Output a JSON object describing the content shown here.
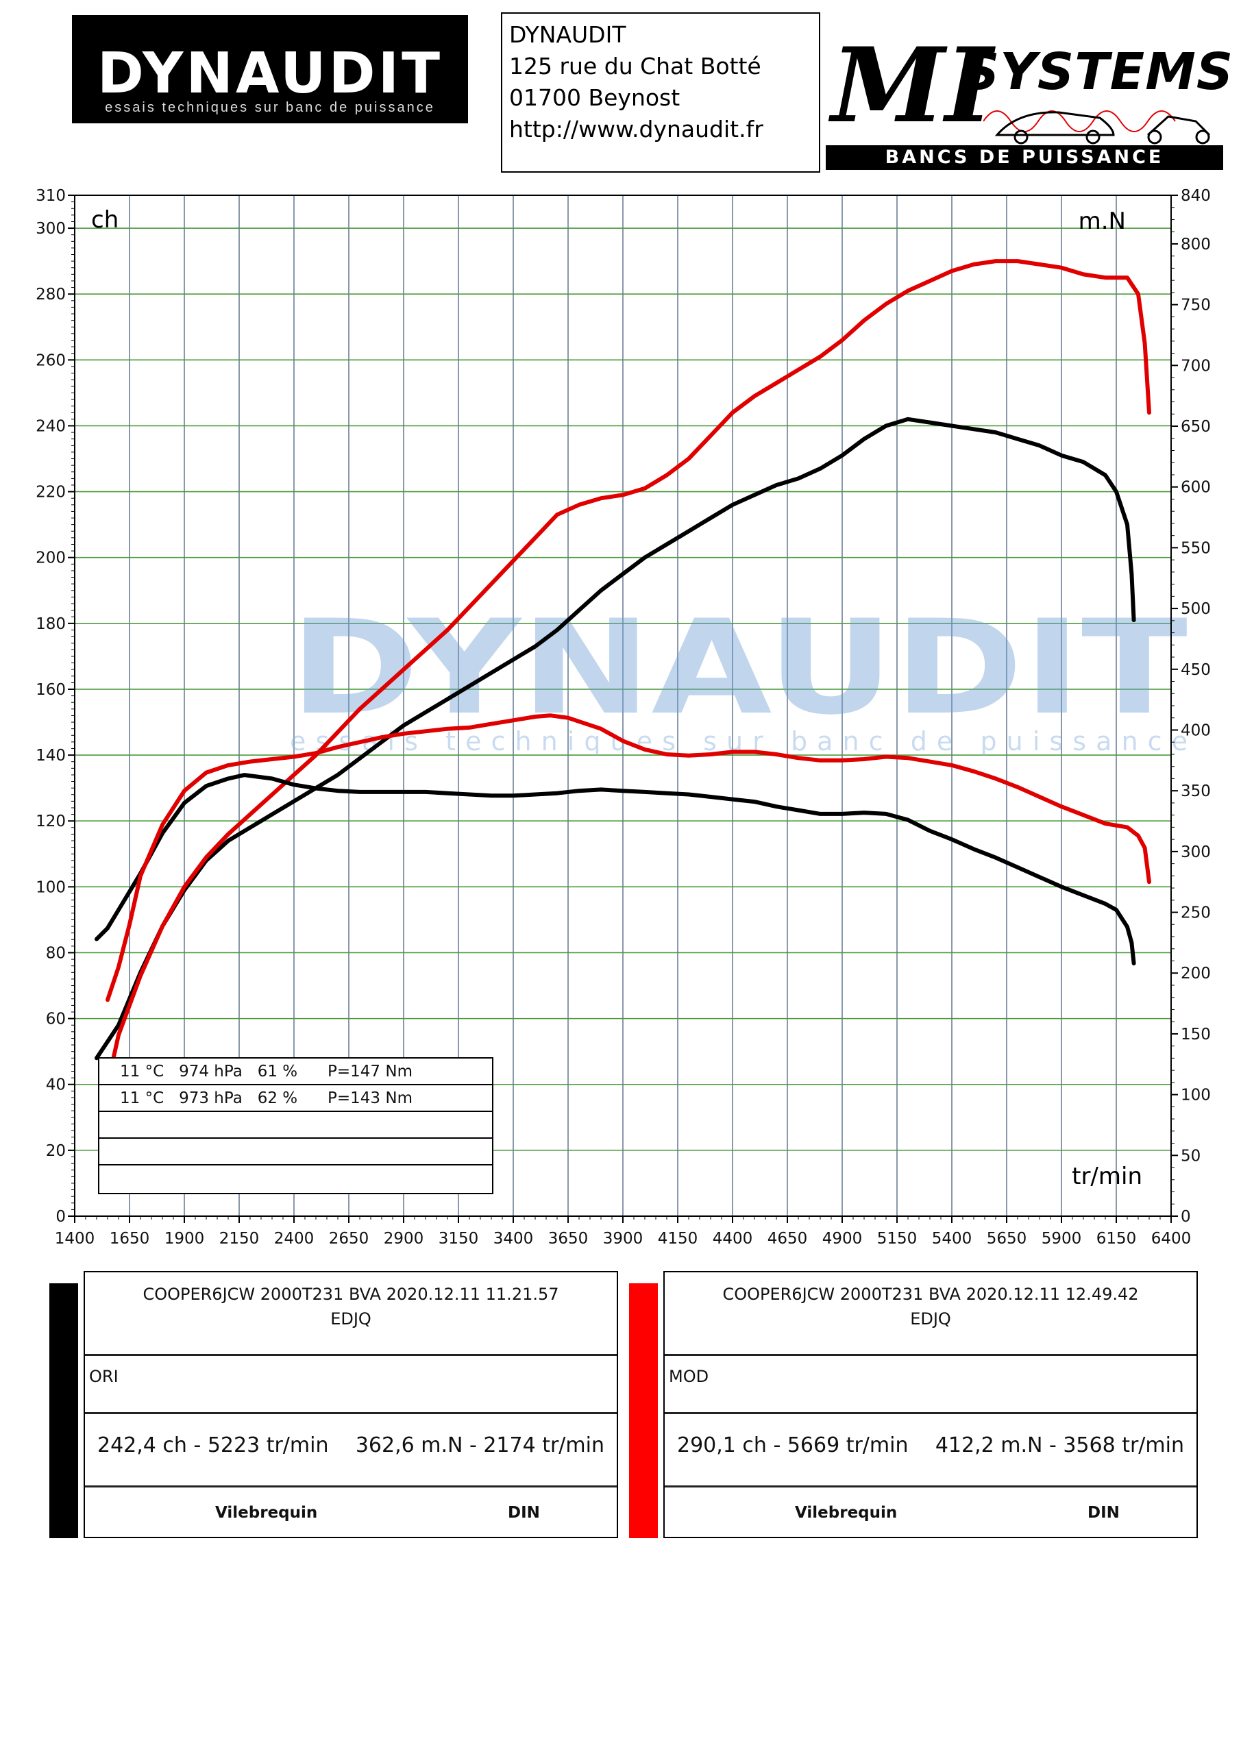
{
  "header": {
    "logo_left": {
      "word": "DYNAUDIT",
      "tagline": "essais techniques sur banc de puissance"
    },
    "address": [
      "DYNAUDIT",
      "125 rue du Chat Botté",
      "01700 Beynost",
      "http://www.dynaudit.fr"
    ],
    "logo_right": {
      "mi": "MI",
      "systems": "SYSTEMS",
      "subtitle": "BANCS DE PUISSANCE"
    }
  },
  "watermark": {
    "word": "DYNAUDIT",
    "tagline": "essais techniques sur banc de puissance"
  },
  "chart_data": {
    "type": "line",
    "xlabel": "tr/min",
    "ylabel_left": "ch",
    "ylabel_right": "m.N",
    "xlim": [
      1400,
      6400
    ],
    "ylim_left": [
      0,
      310
    ],
    "ylim_right": [
      0,
      840
    ],
    "x_ticks": [
      1400,
      1650,
      1900,
      2150,
      2400,
      2650,
      2900,
      3150,
      3400,
      3650,
      3900,
      4150,
      4400,
      4650,
      4900,
      5150,
      5400,
      5650,
      5900,
      6150,
      6400
    ],
    "y_left_ticks": [
      0,
      20,
      40,
      60,
      80,
      100,
      120,
      140,
      160,
      180,
      200,
      220,
      240,
      260,
      280,
      300,
      310
    ],
    "y_right_ticks": [
      0,
      50,
      100,
      150,
      200,
      250,
      300,
      350,
      400,
      450,
      500,
      550,
      600,
      650,
      700,
      750,
      800,
      840
    ],
    "grid": true,
    "series": [
      {
        "name": "ORI",
        "metric": "power",
        "axis": "left",
        "color": "#000000",
        "points": [
          [
            1500,
            48
          ],
          [
            1600,
            58
          ],
          [
            1700,
            74
          ],
          [
            1800,
            88
          ],
          [
            1900,
            99
          ],
          [
            2000,
            108
          ],
          [
            2100,
            114
          ],
          [
            2200,
            118
          ],
          [
            2300,
            122
          ],
          [
            2400,
            126
          ],
          [
            2500,
            130
          ],
          [
            2600,
            134
          ],
          [
            2700,
            139
          ],
          [
            2800,
            144
          ],
          [
            2900,
            149
          ],
          [
            3000,
            153
          ],
          [
            3100,
            157
          ],
          [
            3200,
            161
          ],
          [
            3300,
            165
          ],
          [
            3400,
            169
          ],
          [
            3500,
            173
          ],
          [
            3600,
            178
          ],
          [
            3700,
            184
          ],
          [
            3800,
            190
          ],
          [
            3900,
            195
          ],
          [
            4000,
            200
          ],
          [
            4100,
            204
          ],
          [
            4200,
            208
          ],
          [
            4300,
            212
          ],
          [
            4400,
            216
          ],
          [
            4500,
            219
          ],
          [
            4600,
            222
          ],
          [
            4700,
            224
          ],
          [
            4800,
            227
          ],
          [
            4900,
            231
          ],
          [
            5000,
            236
          ],
          [
            5100,
            240
          ],
          [
            5200,
            242
          ],
          [
            5300,
            241
          ],
          [
            5400,
            240
          ],
          [
            5500,
            239
          ],
          [
            5600,
            238
          ],
          [
            5700,
            236
          ],
          [
            5800,
            234
          ],
          [
            5900,
            231
          ],
          [
            6000,
            229
          ],
          [
            6100,
            225
          ],
          [
            6150,
            220
          ],
          [
            6200,
            210
          ],
          [
            6220,
            195
          ],
          [
            6230,
            181
          ]
        ]
      },
      {
        "name": "MOD",
        "metric": "power",
        "axis": "left",
        "color": "#e00000",
        "points": [
          [
            1550,
            40
          ],
          [
            1600,
            55
          ],
          [
            1700,
            73
          ],
          [
            1800,
            88
          ],
          [
            1900,
            100
          ],
          [
            2000,
            109
          ],
          [
            2100,
            116
          ],
          [
            2200,
            122
          ],
          [
            2300,
            128
          ],
          [
            2400,
            134
          ],
          [
            2500,
            140
          ],
          [
            2600,
            147
          ],
          [
            2700,
            154
          ],
          [
            2800,
            160
          ],
          [
            2900,
            166
          ],
          [
            3000,
            172
          ],
          [
            3100,
            178
          ],
          [
            3200,
            185
          ],
          [
            3300,
            192
          ],
          [
            3400,
            199
          ],
          [
            3500,
            206
          ],
          [
            3600,
            213
          ],
          [
            3700,
            216
          ],
          [
            3800,
            218
          ],
          [
            3900,
            219
          ],
          [
            4000,
            221
          ],
          [
            4100,
            225
          ],
          [
            4200,
            230
          ],
          [
            4300,
            237
          ],
          [
            4400,
            244
          ],
          [
            4500,
            249
          ],
          [
            4600,
            253
          ],
          [
            4700,
            257
          ],
          [
            4800,
            261
          ],
          [
            4900,
            266
          ],
          [
            5000,
            272
          ],
          [
            5100,
            277
          ],
          [
            5200,
            281
          ],
          [
            5300,
            284
          ],
          [
            5400,
            287
          ],
          [
            5500,
            289
          ],
          [
            5600,
            290
          ],
          [
            5700,
            290
          ],
          [
            5800,
            289
          ],
          [
            5900,
            288
          ],
          [
            6000,
            286
          ],
          [
            6100,
            285
          ],
          [
            6150,
            285
          ],
          [
            6200,
            285
          ],
          [
            6250,
            280
          ],
          [
            6280,
            265
          ],
          [
            6300,
            244
          ]
        ]
      },
      {
        "name": "ORI",
        "metric": "torque",
        "axis": "right",
        "color": "#000000",
        "points": [
          [
            1500,
            228
          ],
          [
            1550,
            237
          ],
          [
            1600,
            252
          ],
          [
            1700,
            282
          ],
          [
            1800,
            315
          ],
          [
            1900,
            340
          ],
          [
            2000,
            354
          ],
          [
            2100,
            360
          ],
          [
            2174,
            363
          ],
          [
            2300,
            360
          ],
          [
            2400,
            355
          ],
          [
            2500,
            352
          ],
          [
            2600,
            350
          ],
          [
            2700,
            349
          ],
          [
            2800,
            349
          ],
          [
            2900,
            349
          ],
          [
            3000,
            349
          ],
          [
            3100,
            348
          ],
          [
            3200,
            347
          ],
          [
            3300,
            346
          ],
          [
            3400,
            346
          ],
          [
            3500,
            347
          ],
          [
            3600,
            348
          ],
          [
            3700,
            350
          ],
          [
            3800,
            351
          ],
          [
            3900,
            350
          ],
          [
            4000,
            349
          ],
          [
            4100,
            348
          ],
          [
            4200,
            347
          ],
          [
            4300,
            345
          ],
          [
            4400,
            343
          ],
          [
            4500,
            341
          ],
          [
            4600,
            337
          ],
          [
            4700,
            334
          ],
          [
            4800,
            331
          ],
          [
            4900,
            331
          ],
          [
            5000,
            332
          ],
          [
            5100,
            331
          ],
          [
            5200,
            326
          ],
          [
            5300,
            317
          ],
          [
            5400,
            310
          ],
          [
            5500,
            302
          ],
          [
            5600,
            295
          ],
          [
            5700,
            287
          ],
          [
            5800,
            279
          ],
          [
            5900,
            271
          ],
          [
            6000,
            264
          ],
          [
            6100,
            257
          ],
          [
            6150,
            252
          ],
          [
            6200,
            238
          ],
          [
            6220,
            225
          ],
          [
            6230,
            208
          ]
        ]
      },
      {
        "name": "MOD",
        "metric": "torque",
        "axis": "right",
        "color": "#e00000",
        "points": [
          [
            1550,
            178
          ],
          [
            1600,
            205
          ],
          [
            1650,
            240
          ],
          [
            1700,
            280
          ],
          [
            1800,
            322
          ],
          [
            1900,
            350
          ],
          [
            2000,
            365
          ],
          [
            2100,
            371
          ],
          [
            2200,
            374
          ],
          [
            2300,
            376
          ],
          [
            2400,
            378
          ],
          [
            2500,
            381
          ],
          [
            2600,
            386
          ],
          [
            2700,
            390
          ],
          [
            2800,
            394
          ],
          [
            2900,
            397
          ],
          [
            3000,
            399
          ],
          [
            3100,
            401
          ],
          [
            3200,
            402
          ],
          [
            3300,
            405
          ],
          [
            3400,
            408
          ],
          [
            3500,
            411
          ],
          [
            3568,
            412
          ],
          [
            3650,
            410
          ],
          [
            3800,
            401
          ],
          [
            3900,
            391
          ],
          [
            4000,
            384
          ],
          [
            4100,
            380
          ],
          [
            4200,
            379
          ],
          [
            4300,
            380
          ],
          [
            4400,
            382
          ],
          [
            4500,
            382
          ],
          [
            4600,
            380
          ],
          [
            4700,
            377
          ],
          [
            4800,
            375
          ],
          [
            4900,
            375
          ],
          [
            5000,
            376
          ],
          [
            5100,
            378
          ],
          [
            5200,
            377
          ],
          [
            5300,
            374
          ],
          [
            5400,
            371
          ],
          [
            5500,
            366
          ],
          [
            5600,
            360
          ],
          [
            5700,
            353
          ],
          [
            5800,
            345
          ],
          [
            5900,
            337
          ],
          [
            6000,
            330
          ],
          [
            6100,
            323
          ],
          [
            6200,
            320
          ],
          [
            6250,
            313
          ],
          [
            6280,
            303
          ],
          [
            6300,
            275
          ]
        ]
      }
    ]
  },
  "conditions": [
    "11 °C   974 hPa   61 %      P=147 Nm",
    "11 °C   973 hPa   62 %      P=143 Nm",
    "",
    "",
    ""
  ],
  "panels": [
    {
      "title": "COOPER6JCW 2000T231 BVA   2020.12.11 11.21.57",
      "code": "EDJQ",
      "label": "ORI",
      "power": "242,4 ch - 5223 tr/min",
      "torque": "362,6 m.N - 2174 tr/min",
      "footer_left": "Vilebrequin",
      "footer_right": "DIN",
      "color": "#000000"
    },
    {
      "title": "COOPER6JCW 2000T231 BVA   2020.12.11 12.49.42",
      "code": "EDJQ",
      "label": "MOD",
      "power": "290,1 ch - 5669 tr/min",
      "torque": "412,2 m.N - 3568 tr/min",
      "footer_left": "Vilebrequin",
      "footer_right": "DIN",
      "color": "#ff0000"
    }
  ]
}
